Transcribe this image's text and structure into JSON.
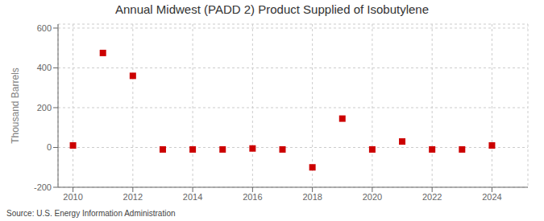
{
  "chart_data": {
    "type": "scatter",
    "title": "Annual Midwest (PADD 2) Product Supplied of Isobutylene",
    "ylabel": "Thousand Barrels",
    "annotations": [
      "Source: U.S. Energy Information Administration"
    ],
    "x": [
      2010,
      2011,
      2012,
      2013,
      2014,
      2015,
      2016,
      2017,
      2018,
      2019,
      2020,
      2021,
      2022,
      2023,
      2024
    ],
    "values": [
      10,
      475,
      360,
      -10,
      -10,
      -10,
      -5,
      -10,
      -100,
      145,
      -10,
      30,
      -10,
      -10,
      10
    ],
    "color": "#cc0000",
    "marker": "square",
    "xlim": [
      2009.5,
      2025.2
    ],
    "xticks": [
      2010,
      2012,
      2014,
      2016,
      2018,
      2020,
      2022,
      2024
    ],
    "ylim": [
      -200,
      620
    ],
    "yticks": [
      -200,
      0,
      200,
      400,
      600
    ],
    "grid": true
  }
}
